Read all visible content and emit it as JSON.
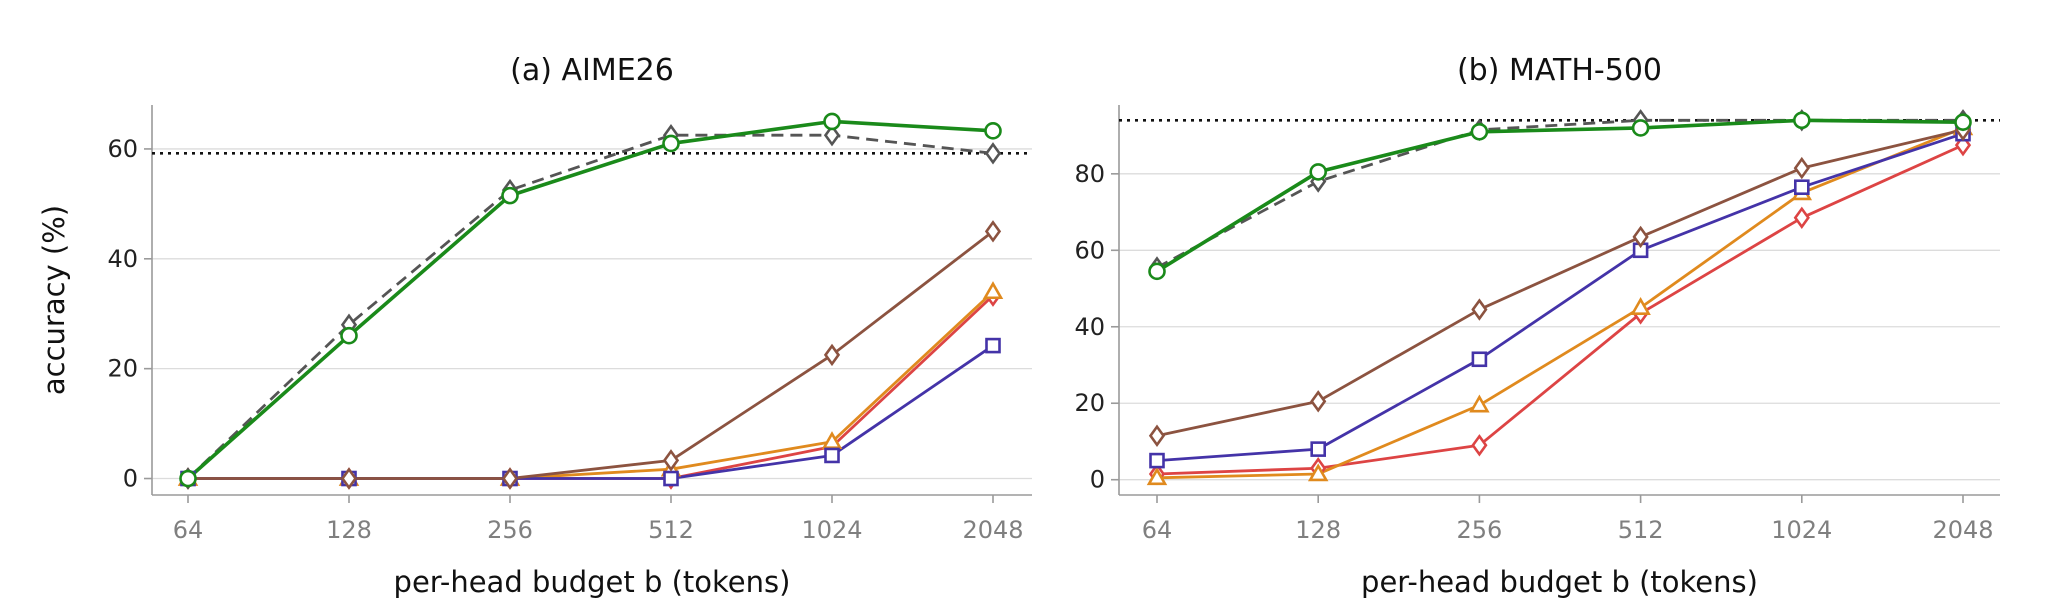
{
  "chart_data": [
    {
      "type": "line",
      "title": "(a) AIME26",
      "xlabel": "per-head budget b (tokens)",
      "ylabel": "accuracy (%)",
      "x_scale": "log2",
      "x": [
        64,
        128,
        256,
        512,
        1024,
        2048
      ],
      "x_tick_labels": [
        "64",
        "128",
        "256",
        "512",
        "1024",
        "2048"
      ],
      "ylim": [
        -3,
        68
      ],
      "y_ticks": [
        0,
        20,
        40,
        60
      ],
      "grid": "horizontal",
      "reference_line": 59.2,
      "series": [
        {
          "values": [
            0,
            26,
            51.5,
            61,
            65,
            63.3
          ],
          "color": "#1a8a1a",
          "marker": "circle",
          "style": "solid"
        },
        {
          "values": [
            0,
            28,
            52.5,
            62.5,
            62.5,
            59.2
          ],
          "color": "#555555",
          "marker": "diamond",
          "style": "dashed"
        },
        {
          "values": [
            0,
            0,
            0,
            3.3,
            22.5,
            45
          ],
          "color": "#8c5340",
          "marker": "diamond",
          "style": "solid"
        },
        {
          "values": [
            0,
            0,
            0,
            0,
            4.2,
            24.2
          ],
          "color": "#4433a8",
          "marker": "square",
          "style": "solid"
        },
        {
          "values": [
            0,
            0,
            0,
            1.7,
            6.7,
            34
          ],
          "color": "#e08a1e",
          "marker": "triangle",
          "style": "solid"
        },
        {
          "values": [
            0,
            0,
            0,
            0,
            5.8,
            33.3
          ],
          "color": "#dd4444",
          "marker": "diamond",
          "style": "solid"
        }
      ]
    },
    {
      "type": "line",
      "title": "(b) MATH-500",
      "xlabel": "per-head budget b (tokens)",
      "ylabel": "",
      "x_scale": "log2",
      "x": [
        64,
        128,
        256,
        512,
        1024,
        2048
      ],
      "x_tick_labels": [
        "64",
        "128",
        "256",
        "512",
        "1024",
        "2048"
      ],
      "ylim": [
        -4,
        98
      ],
      "y_ticks": [
        0,
        20,
        40,
        60,
        80
      ],
      "grid": "horizontal",
      "reference_line": 94,
      "series": [
        {
          "values": [
            54.5,
            80.5,
            91,
            92,
            94,
            93.5
          ],
          "color": "#1a8a1a",
          "marker": "circle",
          "style": "solid"
        },
        {
          "values": [
            55.5,
            78,
            91.5,
            94,
            94,
            94
          ],
          "color": "#555555",
          "marker": "diamond",
          "style": "dashed"
        },
        {
          "values": [
            11.5,
            20.5,
            44.5,
            63.5,
            81.5,
            91.5
          ],
          "color": "#8c5340",
          "marker": "diamond",
          "style": "solid"
        },
        {
          "values": [
            5,
            8,
            31.5,
            60,
            76.5,
            90.5
          ],
          "color": "#4433a8",
          "marker": "square",
          "style": "solid"
        },
        {
          "values": [
            0.5,
            1.5,
            19.5,
            45,
            75,
            92
          ],
          "color": "#e08a1e",
          "marker": "triangle",
          "style": "solid"
        },
        {
          "values": [
            1.5,
            3,
            9,
            43.5,
            68.5,
            87.5
          ],
          "color": "#dd4444",
          "marker": "diamond",
          "style": "solid"
        }
      ]
    }
  ]
}
